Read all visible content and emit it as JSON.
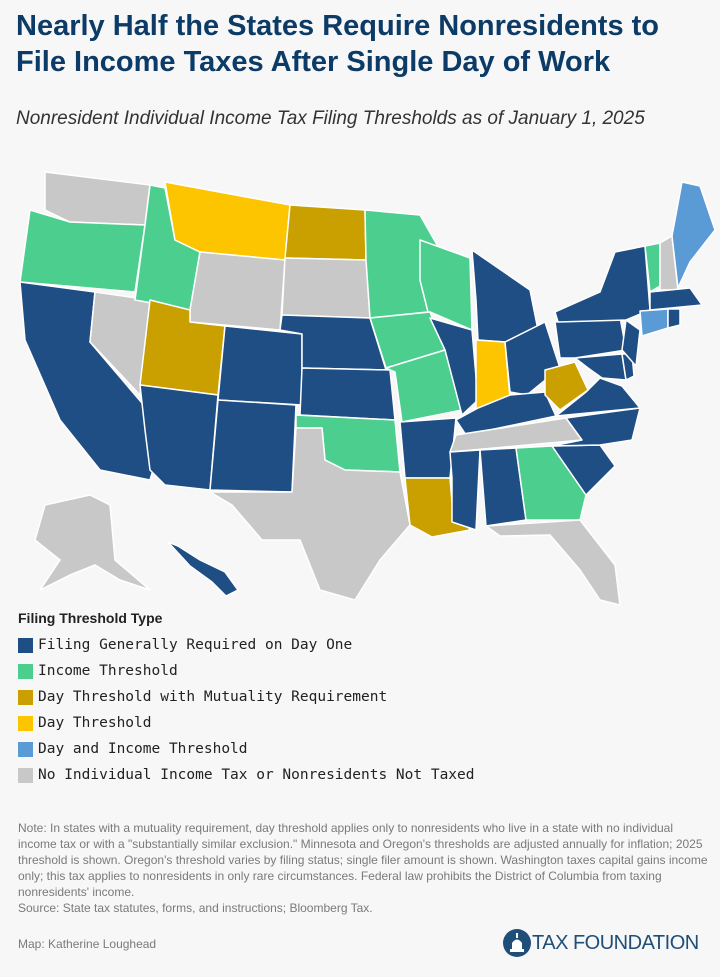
{
  "title": "Nearly Half the States Require Nonresidents to File Income Taxes After Single Day of Work",
  "subtitle": "Nonresident Individual Income Tax Filing Thresholds as of January 1, 2025",
  "legend": {
    "title": "Filing Threshold Type",
    "items": [
      {
        "key": "day_one",
        "label": "Filing Generally Required on Day One",
        "color": "#1f4e85"
      },
      {
        "key": "income",
        "label": "Income Threshold",
        "color": "#4ccf8e"
      },
      {
        "key": "day_mutual",
        "label": "Day Threshold with Mutuality Requirement",
        "color": "#c9a000"
      },
      {
        "key": "day",
        "label": "Day Threshold",
        "color": "#fdc400"
      },
      {
        "key": "day_income",
        "label": "Day and Income Threshold",
        "color": "#5b9bd5"
      },
      {
        "key": "none",
        "label": "No Individual Income Tax or Nonresidents Not Taxed",
        "color": "#c8c8c8"
      }
    ]
  },
  "states": {
    "WA": "none",
    "OR": "income",
    "CA": "day_one",
    "NV": "none",
    "ID": "income",
    "MT": "day",
    "WY": "none",
    "UT": "day_mutual",
    "AZ": "day_one",
    "CO": "day_one",
    "NM": "day_one",
    "ND": "day_mutual",
    "SD": "none",
    "NE": "day_one",
    "KS": "day_one",
    "OK": "income",
    "TX": "none",
    "MN": "income",
    "IA": "income",
    "MO": "income",
    "AR": "day_one",
    "LA": "day_mutual",
    "WI": "income",
    "IL": "day_one",
    "MI": "day_one",
    "IN": "day",
    "OH": "day_one",
    "KY": "day_one",
    "TN": "none",
    "MS": "day_one",
    "AL": "day_one",
    "GA": "income",
    "FL": "none",
    "SC": "day_one",
    "NC": "day_one",
    "VA": "day_one",
    "WV": "day_mutual",
    "PA": "day_one",
    "NY": "day_one",
    "NJ": "day_one",
    "MD": "day_one",
    "DE": "day_one",
    "CT": "day_income",
    "RI": "day_one",
    "MA": "day_one",
    "VT": "income",
    "NH": "none",
    "ME": "day_income",
    "AK": "none",
    "HI": "day_one"
  },
  "note": "Note: In states with a mutuality requirement, day threshold applies only to nonresidents who live in a state with no individual income tax or with a \"substantially similar exclusion.\" Minnesota and Oregon's thresholds are adjusted annually for inflation; 2025 threshold is shown. Oregon's threshold varies by filing status; single filer amount is shown. Washington taxes capital gains income only; this tax applies to nonresidents in only rare circumstances. Federal law prohibits the District of Columbia from taxing nonresidents' income.",
  "source": "Source: State tax statutes, forms, and instructions; Bloomberg Tax.",
  "credit": "Map: Katherine Loughead",
  "logo": "TAX FOUNDATION"
}
